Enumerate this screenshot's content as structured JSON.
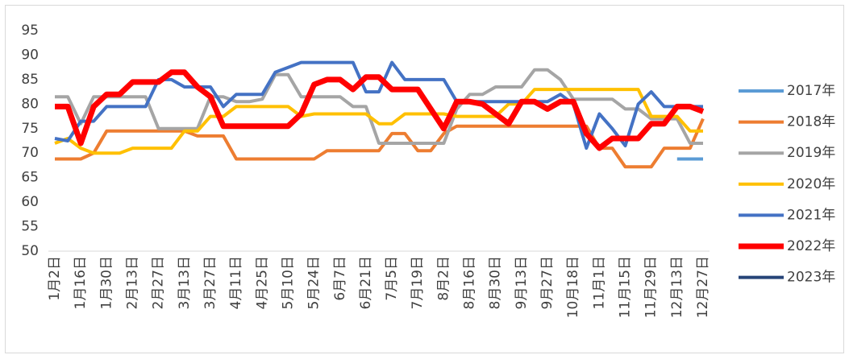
{
  "chart_data": {
    "type": "line",
    "categories": [
      "1月2日",
      null,
      "1月16日",
      null,
      "1月30日",
      null,
      "2月13日",
      null,
      "2月27日",
      null,
      "3月13日",
      null,
      "3月27日",
      null,
      "4月11日",
      null,
      "4月25日",
      null,
      "5月10日",
      null,
      "5月24日",
      null,
      "6月7日",
      null,
      "6月21日",
      null,
      "7月5日",
      null,
      "7月19日",
      null,
      "8月2日",
      null,
      "8月16日",
      null,
      "8月30日",
      null,
      "9月13日",
      null,
      "9月27日",
      null,
      "10月18日",
      null,
      "11月1日",
      null,
      "11月15日",
      null,
      "11月29日",
      null,
      "12月13日",
      null,
      "12月27日"
    ],
    "series": [
      {
        "name": "2017年",
        "color": "#5b9bd5",
        "values": [
          null,
          null,
          null,
          null,
          null,
          null,
          null,
          null,
          null,
          null,
          null,
          null,
          null,
          null,
          null,
          null,
          null,
          null,
          null,
          null,
          null,
          null,
          null,
          null,
          null,
          null,
          null,
          null,
          null,
          null,
          null,
          null,
          null,
          null,
          null,
          null,
          null,
          null,
          null,
          null,
          null,
          null,
          null,
          null,
          null,
          null,
          null,
          null,
          68.8,
          68.8,
          68.8
        ]
      },
      {
        "name": "2018年",
        "color": "#ed7d31",
        "values": [
          68.8,
          68.8,
          68.8,
          70,
          74.5,
          74.5,
          74.5,
          74.5,
          74.5,
          74.5,
          74.5,
          73.5,
          73.5,
          73.5,
          68.8,
          68.8,
          68.8,
          68.8,
          68.8,
          68.8,
          68.8,
          70.5,
          70.5,
          70.5,
          70.5,
          70.5,
          74,
          74,
          70.5,
          70.5,
          74,
          75.5,
          75.5,
          75.5,
          75.5,
          75.5,
          75.5,
          75.5,
          75.5,
          75.5,
          75.5,
          75.5,
          71,
          71,
          67.2,
          67.2,
          67.2,
          71,
          71,
          71,
          77
        ]
      },
      {
        "name": "2019年",
        "color": "#a5a5a5",
        "values": [
          81.5,
          81.5,
          76,
          81.5,
          81.5,
          81.5,
          81.5,
          81.5,
          75,
          75,
          75,
          75,
          81.5,
          81.5,
          80.5,
          80.5,
          81,
          86,
          86,
          81.5,
          81.5,
          81.5,
          81.5,
          79.5,
          79.5,
          72,
          72,
          72,
          72,
          72,
          72,
          79,
          82,
          82,
          83.5,
          83.5,
          83.5,
          87,
          87,
          85,
          81,
          81,
          81,
          81,
          79,
          79,
          77,
          77,
          77,
          72,
          72
        ]
      },
      {
        "name": "2020年",
        "color": "#ffc000",
        "values": [
          72,
          73,
          71,
          70,
          70,
          70,
          71,
          71,
          71,
          71,
          74.5,
          74.5,
          77.5,
          77.5,
          79.5,
          79.5,
          79.5,
          79.5,
          79.5,
          77.5,
          78,
          78,
          78,
          78,
          78,
          76,
          76,
          78,
          78,
          78,
          78,
          77.5,
          77.5,
          77.5,
          77.5,
          80,
          80,
          83,
          83,
          83,
          83,
          83,
          83,
          83,
          83,
          83,
          77.5,
          77.5,
          77.5,
          74.5,
          74.5
        ]
      },
      {
        "name": "2021年",
        "color": "#4472c4",
        "values": [
          73,
          72.5,
          76.5,
          76.5,
          79.5,
          79.5,
          79.5,
          79.5,
          85,
          85,
          83.5,
          83.5,
          83.5,
          79.5,
          82,
          82,
          82,
          86.5,
          87.5,
          88.5,
          88.5,
          88.5,
          88.5,
          88.5,
          82.5,
          82.5,
          88.5,
          85,
          85,
          85,
          85,
          80.5,
          80.5,
          80.5,
          80.5,
          80.5,
          80.5,
          80.5,
          80.5,
          82,
          80,
          71,
          78,
          75,
          71.5,
          80,
          82.5,
          79.5,
          79.5,
          79.5,
          79.5
        ]
      },
      {
        "name": "2022年",
        "color": "#ff0000",
        "values": [
          79.5,
          79.5,
          72,
          79.5,
          82,
          82,
          84.5,
          84.5,
          84.5,
          86.5,
          86.5,
          83.5,
          81.5,
          75.5,
          75.5,
          75.5,
          75.5,
          75.5,
          75.5,
          78,
          84,
          85,
          85,
          83,
          85.5,
          85.5,
          83,
          83,
          83,
          79,
          75,
          80.5,
          80.5,
          80,
          78,
          76,
          80.5,
          80.5,
          79,
          80.5,
          80.5,
          74,
          71,
          73,
          73,
          73,
          76,
          76,
          79.5,
          79.5,
          78.5
        ]
      },
      {
        "name": "2023年",
        "color": "#264478",
        "values": [
          null,
          null,
          null,
          null,
          null,
          null,
          null,
          null,
          null,
          null,
          null,
          null,
          null,
          null,
          null,
          null,
          null,
          null,
          null,
          null,
          null,
          null,
          null,
          null,
          null,
          null,
          null,
          null,
          null,
          null,
          null,
          null,
          null,
          null,
          null,
          null,
          null,
          null,
          null,
          null,
          null,
          null,
          null,
          null,
          null,
          null,
          null,
          null,
          null,
          null,
          null
        ]
      }
    ],
    "ylim": [
      50,
      95
    ],
    "yticks": [
      50,
      55,
      60,
      65,
      70,
      75,
      80,
      85,
      90,
      95
    ],
    "grid": false,
    "legend": "right"
  }
}
